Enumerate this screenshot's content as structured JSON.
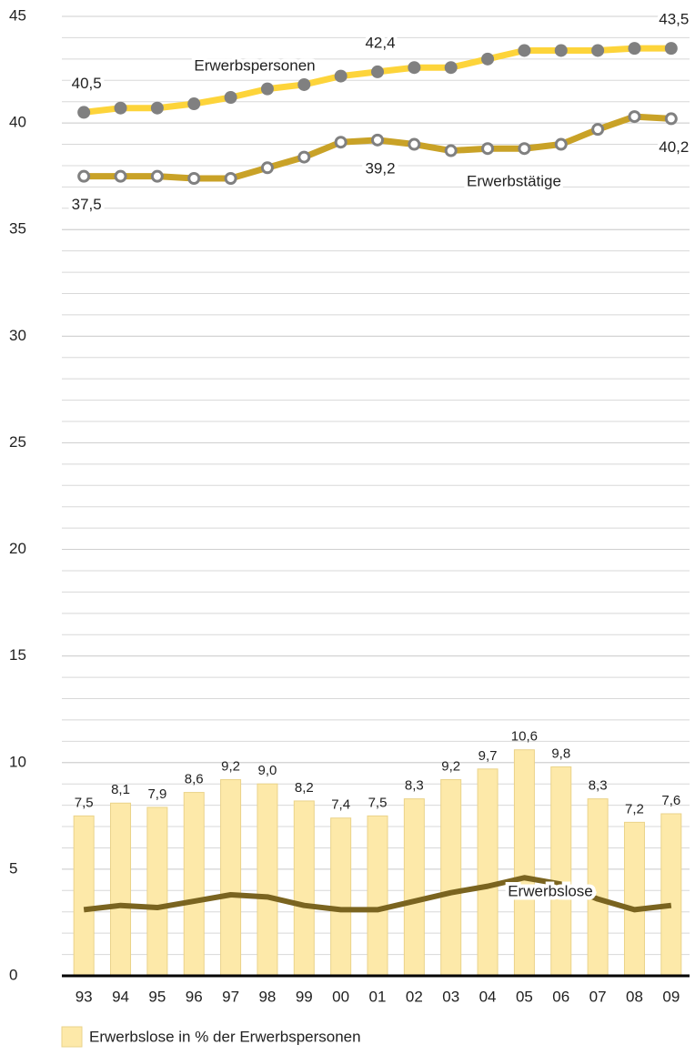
{
  "chart_data": {
    "type": "line_bar",
    "categories": [
      "93",
      "94",
      "95",
      "96",
      "97",
      "98",
      "99",
      "00",
      "01",
      "02",
      "03",
      "04",
      "05",
      "06",
      "07",
      "08",
      "09"
    ],
    "series": [
      {
        "name": "Erwerbspersonen",
        "type": "line",
        "color": "#fdd43a",
        "marker_color": "#808080",
        "values": [
          40.5,
          40.7,
          40.7,
          40.9,
          41.2,
          41.6,
          41.8,
          42.2,
          42.4,
          42.6,
          42.6,
          43.0,
          43.4,
          43.4,
          43.4,
          43.5,
          43.5
        ],
        "value_labels": [
          "40,5",
          null,
          null,
          null,
          null,
          null,
          null,
          null,
          "42,4",
          null,
          null,
          null,
          null,
          null,
          null,
          null,
          "43,5"
        ]
      },
      {
        "name": "Erwerbstätige",
        "type": "line",
        "color": "#c9a227",
        "marker_color": "#ffffff",
        "values": [
          37.5,
          37.5,
          37.5,
          37.4,
          37.4,
          37.9,
          38.4,
          39.1,
          39.2,
          39.0,
          38.7,
          38.8,
          38.8,
          39.0,
          39.7,
          40.3,
          40.2
        ],
        "value_labels": [
          "37,5",
          null,
          null,
          null,
          null,
          null,
          null,
          null,
          "39,2",
          null,
          null,
          null,
          null,
          null,
          null,
          null,
          "40,2"
        ]
      },
      {
        "name": "Erwerbslose",
        "type": "line",
        "color": "#7a6420",
        "values": [
          3.1,
          3.3,
          3.2,
          3.5,
          3.8,
          3.7,
          3.3,
          3.1,
          3.1,
          3.5,
          3.9,
          4.2,
          4.6,
          4.3,
          3.6,
          3.1,
          3.3
        ]
      },
      {
        "name": "Erwerbslose in % der Erwerbspersonen",
        "type": "bar",
        "color": "#fde9a9",
        "values": [
          7.5,
          8.1,
          7.9,
          8.6,
          9.2,
          9.0,
          8.2,
          7.4,
          7.5,
          8.3,
          9.2,
          9.7,
          10.6,
          9.8,
          8.3,
          7.2,
          7.6
        ],
        "value_labels": [
          "7,5",
          "8,1",
          "7,9",
          "8,6",
          "9,2",
          "9,0",
          "8,2",
          "7,4",
          "7,5",
          "8,3",
          "9,2",
          "9,7",
          "10,6",
          "9,8",
          "8,3",
          "7,2",
          "7,6"
        ]
      }
    ],
    "ylim": [
      0,
      45
    ],
    "yticks": [
      0,
      5,
      10,
      15,
      20,
      25,
      30,
      35,
      40,
      45
    ],
    "grid": true,
    "minor_grid_step": 1
  }
}
